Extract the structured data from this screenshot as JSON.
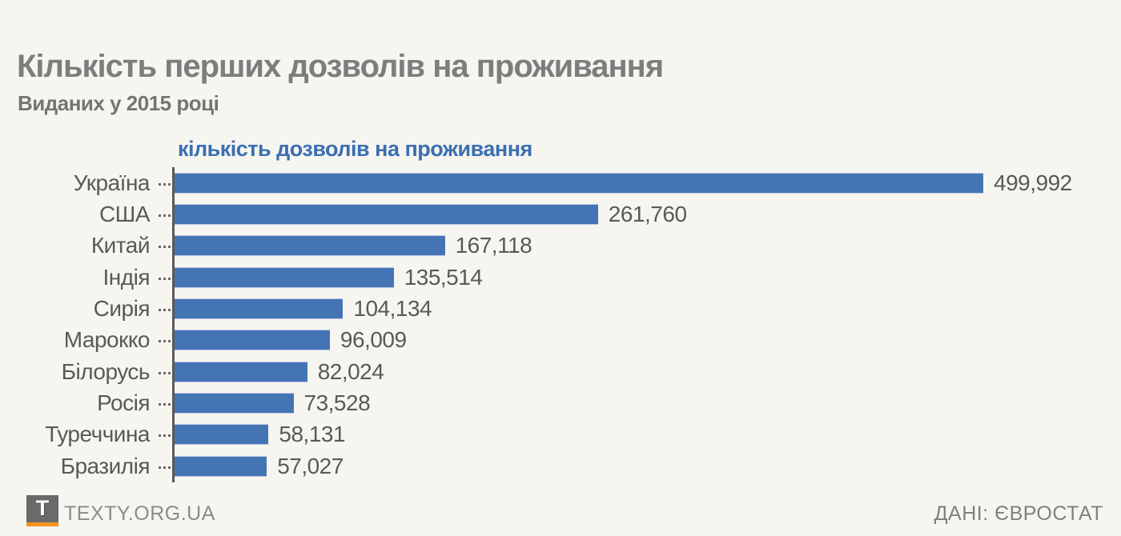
{
  "page": {
    "title": "Кількість перших дозволів на проживання",
    "subtitle": "Виданих у 2015 році"
  },
  "chart_data": {
    "type": "bar",
    "orientation": "horizontal",
    "title": "кількість дозволів на проживання",
    "categories": [
      "Україна",
      "США",
      "Китай",
      "Індія",
      "Сирія",
      "Марокко",
      "Білорусь",
      "Росія",
      "Туреччина",
      "Бразилія"
    ],
    "values": [
      499992,
      261760,
      167118,
      135514,
      104134,
      96009,
      82024,
      73528,
      58131,
      57027
    ],
    "value_labels": [
      "499,992",
      "261,760",
      "167,118",
      "135,514",
      "104,134",
      "96,009",
      "82,024",
      "73,528",
      "58,131",
      "57,027"
    ],
    "xlim": [
      0,
      505000
    ],
    "grid": false,
    "legend": false,
    "bar_color": "#4574b4"
  },
  "footer": {
    "brand": "TEXTY.ORG.UA",
    "logo_letter": "T",
    "source": "ДАНІ: ЄВРОСТАТ"
  },
  "colors": {
    "background": "#f7f5f0",
    "title_gray": "#7d7d7d",
    "chart_title_blue": "#3a6fb3",
    "bar_blue": "#4574b4",
    "label_gray": "#595959",
    "axis_gray": "#5e5a54",
    "logo_gray": "#6a6a6a",
    "logo_orange": "#f7941e"
  }
}
